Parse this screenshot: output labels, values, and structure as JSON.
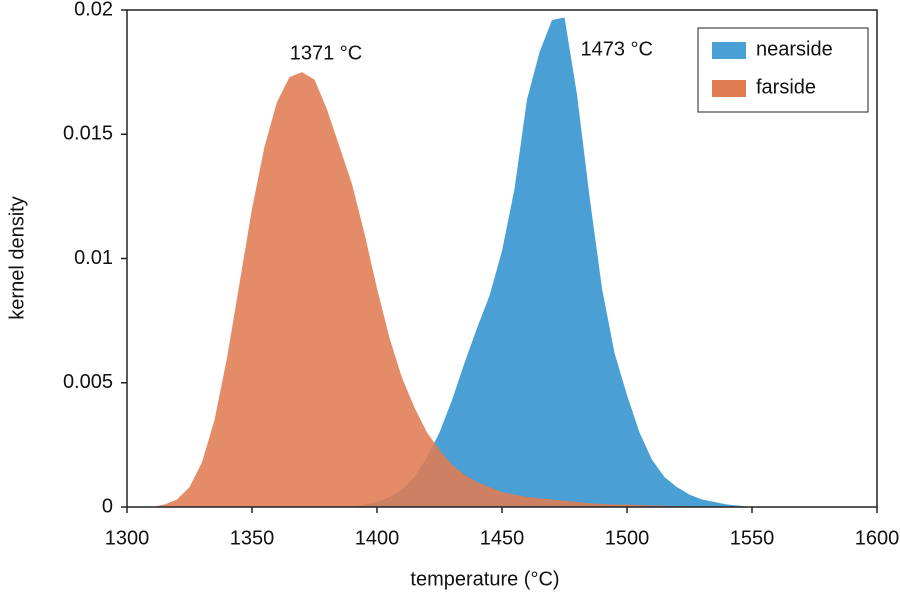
{
  "chart_data": {
    "type": "area",
    "xlabel": "temperature (°C)",
    "ylabel": "kernel density",
    "x": [
      1310,
      1315,
      1320,
      1325,
      1330,
      1335,
      1340,
      1345,
      1350,
      1355,
      1360,
      1365,
      1370,
      1375,
      1380,
      1385,
      1390,
      1395,
      1400,
      1405,
      1410,
      1415,
      1420,
      1425,
      1430,
      1435,
      1440,
      1445,
      1450,
      1455,
      1460,
      1465,
      1470,
      1475,
      1480,
      1485,
      1490,
      1495,
      1500,
      1505,
      1510,
      1515,
      1520,
      1525,
      1530,
      1535,
      1540,
      1545,
      1550,
      1555,
      1560
    ],
    "series": [
      {
        "name": "nearside",
        "color": "#4a9fd4",
        "values": [
          0,
          0,
          0,
          0,
          0,
          0,
          0,
          0,
          0,
          0,
          0,
          0,
          0,
          0,
          0,
          0,
          0,
          0.0001,
          0.0002,
          0.0004,
          0.0007,
          0.0012,
          0.002,
          0.003,
          0.0043,
          0.0058,
          0.0072,
          0.0085,
          0.0103,
          0.0128,
          0.0164,
          0.0183,
          0.0196,
          0.0197,
          0.0166,
          0.0125,
          0.0088,
          0.0062,
          0.0045,
          0.003,
          0.0019,
          0.0012,
          0.0008,
          0.0005,
          0.0003,
          0.0002,
          0.0001,
          5e-05,
          0,
          0,
          0
        ]
      },
      {
        "name": "farside",
        "color": "#e07c52",
        "values": [
          0,
          0.0001,
          0.0003,
          0.0008,
          0.0018,
          0.0035,
          0.006,
          0.009,
          0.012,
          0.0145,
          0.0163,
          0.0173,
          0.0175,
          0.0172,
          0.016,
          0.0145,
          0.013,
          0.011,
          0.0088,
          0.0068,
          0.0052,
          0.004,
          0.003,
          0.0023,
          0.0017,
          0.0013,
          0.001,
          0.0008,
          0.0006,
          0.0005,
          0.0004,
          0.00035,
          0.0003,
          0.00025,
          0.0002,
          0.00015,
          0.00012,
          0.0001,
          0.0001,
          8e-05,
          6e-05,
          5e-05,
          4e-05,
          3e-05,
          2e-05,
          1e-05,
          0,
          0,
          0,
          0,
          0
        ]
      }
    ],
    "annotations": [
      "1473 °C",
      "1371 °C"
    ],
    "xlim": [
      1300,
      1600
    ],
    "xticks": [
      1300,
      1350,
      1400,
      1450,
      1500,
      1550,
      1600
    ],
    "ylim": [
      0,
      0.02
    ],
    "yticks": [
      0,
      0.005,
      0.01,
      0.015,
      0.02
    ],
    "legend": "upper right"
  }
}
